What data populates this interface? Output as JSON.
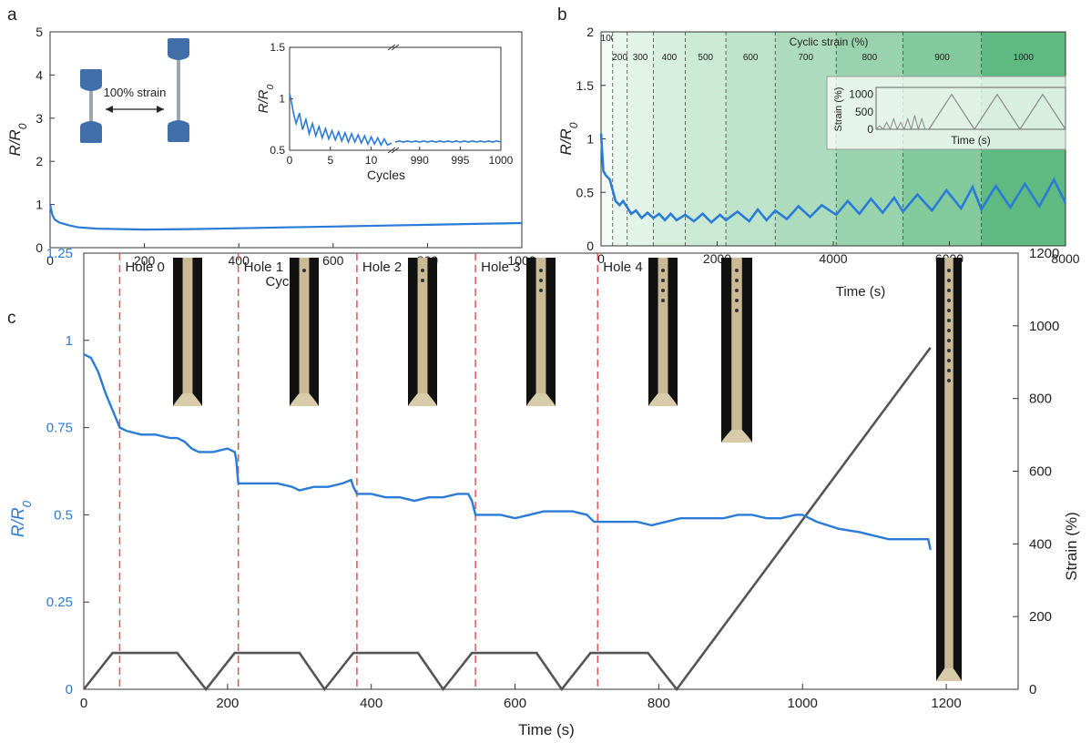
{
  "panels": {
    "a": "a",
    "b": "b",
    "c": "c"
  },
  "colors": {
    "blue": "#2a7bd6",
    "dark": "#555555",
    "red": "#e05555",
    "specimen": "#3f6ea8",
    "wire": "#9aa7b5"
  },
  "chart_data": [
    {
      "id": "a",
      "type": "line",
      "xlabel": "Cycles",
      "ylabel": "R/R0",
      "xlim": [
        0,
        1000
      ],
      "ylim": [
        0,
        5
      ],
      "xticks": [
        0,
        200,
        400,
        600,
        800,
        1000
      ],
      "yticks": [
        0,
        1,
        2,
        3,
        4,
        5
      ],
      "series": [
        {
          "x": [
            0,
            5,
            10,
            20,
            40,
            60,
            100,
            150,
            200,
            300,
            400,
            500,
            600,
            700,
            800,
            900,
            1000
          ],
          "y": [
            1.0,
            0.75,
            0.65,
            0.58,
            0.52,
            0.47,
            0.44,
            0.43,
            0.42,
            0.43,
            0.45,
            0.47,
            0.49,
            0.51,
            0.53,
            0.55,
            0.57
          ]
        }
      ],
      "annotation": "100% strain",
      "inset": {
        "xlabel": "Cycles",
        "ylabel": "R/R0",
        "ylim": [
          0.5,
          1.5
        ],
        "yticks": [
          0.5,
          1,
          1.5
        ],
        "left_xlim": [
          0,
          12.5
        ],
        "left_xticks": [
          0,
          5,
          10
        ],
        "right_xlim": [
          987,
          1000
        ],
        "right_xticks": [
          990,
          995,
          1000
        ],
        "left_series": {
          "x": [
            0,
            0.2,
            0.5,
            0.8,
            1.2,
            1.6,
            2.0,
            2.4,
            2.8,
            3.2,
            3.6,
            4.0,
            4.4,
            4.8,
            5.2,
            5.6,
            6.0,
            6.4,
            6.8,
            7.2,
            7.6,
            8.0,
            8.4,
            8.8,
            9.2,
            9.6,
            10.0,
            10.4,
            10.8,
            11.2,
            11.6,
            12.0,
            12.5
          ],
          "y": [
            1.05,
            0.98,
            0.85,
            0.76,
            0.86,
            0.7,
            0.8,
            0.66,
            0.76,
            0.64,
            0.73,
            0.62,
            0.71,
            0.61,
            0.69,
            0.6,
            0.68,
            0.59,
            0.67,
            0.58,
            0.66,
            0.58,
            0.65,
            0.57,
            0.64,
            0.56,
            0.63,
            0.56,
            0.62,
            0.55,
            0.61,
            0.55,
            0.57
          ]
        },
        "right_series": {
          "x": [
            987,
            987.5,
            988,
            988.5,
            989,
            989.5,
            990,
            990.5,
            991,
            991.5,
            992,
            992.5,
            993,
            993.5,
            994,
            994.5,
            995,
            995.5,
            996,
            996.5,
            997,
            997.5,
            998,
            998.5,
            999,
            999.5,
            1000
          ],
          "y": [
            0.58,
            0.59,
            0.58,
            0.59,
            0.58,
            0.59,
            0.58,
            0.59,
            0.58,
            0.59,
            0.58,
            0.59,
            0.58,
            0.59,
            0.58,
            0.59,
            0.58,
            0.59,
            0.58,
            0.59,
            0.58,
            0.59,
            0.58,
            0.59,
            0.58,
            0.59,
            0.58
          ]
        }
      }
    },
    {
      "id": "b",
      "type": "line",
      "xlabel": "Time (s)",
      "ylabel": "R/R0",
      "xlim": [
        0,
        8000
      ],
      "ylim": [
        0,
        2
      ],
      "xticks": [
        0,
        2000,
        4000,
        6000,
        8000
      ],
      "yticks": [
        0,
        0.5,
        1,
        1.5,
        2
      ],
      "region_title": "Cyclic strain (%)",
      "regions": [
        {
          "label": "100",
          "x0": 0,
          "x1": 200
        },
        {
          "label": "200",
          "x0": 200,
          "x1": 450
        },
        {
          "label": "300",
          "x0": 450,
          "x1": 900
        },
        {
          "label": "400",
          "x0": 900,
          "x1": 1450
        },
        {
          "label": "500",
          "x0": 1450,
          "x1": 2150
        },
        {
          "label": "600",
          "x0": 2150,
          "x1": 3000
        },
        {
          "label": "700",
          "x0": 3000,
          "x1": 4050
        },
        {
          "label": "800",
          "x0": 4050,
          "x1": 5200
        },
        {
          "label": "900",
          "x0": 5200,
          "x1": 6550
        },
        {
          "label": "1000",
          "x0": 6550,
          "x1": 8000
        }
      ],
      "series": [
        {
          "x": [
            0,
            40,
            80,
            150,
            250,
            320,
            380,
            450,
            520,
            600,
            700,
            800,
            900,
            1000,
            1100,
            1200,
            1300,
            1450,
            1600,
            1750,
            1900,
            2050,
            2150,
            2350,
            2550,
            2700,
            2850,
            3000,
            3200,
            3400,
            3600,
            3800,
            4050,
            4250,
            4450,
            4650,
            4850,
            5050,
            5200,
            5450,
            5700,
            5950,
            6200,
            6400,
            6550,
            6800,
            7050,
            7300,
            7550,
            7800,
            8000
          ],
          "y": [
            1.05,
            0.7,
            0.66,
            0.62,
            0.42,
            0.38,
            0.42,
            0.36,
            0.3,
            0.33,
            0.26,
            0.31,
            0.26,
            0.3,
            0.24,
            0.3,
            0.24,
            0.29,
            0.23,
            0.3,
            0.22,
            0.29,
            0.24,
            0.32,
            0.23,
            0.34,
            0.24,
            0.33,
            0.25,
            0.37,
            0.27,
            0.38,
            0.29,
            0.42,
            0.3,
            0.44,
            0.31,
            0.45,
            0.32,
            0.48,
            0.33,
            0.52,
            0.35,
            0.55,
            0.34,
            0.56,
            0.36,
            0.58,
            0.37,
            0.62,
            0.4
          ]
        }
      ],
      "inset": {
        "xlabel": "Time (s)",
        "ylabel": "Strain (%)",
        "yticks": [
          0,
          500,
          1000
        ],
        "ylim": [
          0,
          1200
        ],
        "xlim": [
          0,
          10
        ],
        "left_series": {
          "x": [
            0,
            0.3,
            0.6,
            0.9,
            1.2,
            1.5,
            1.8,
            2.1,
            2.4,
            2.7,
            3.0,
            3.3,
            3.6,
            3.9,
            4.2
          ],
          "y": [
            0,
            100,
            0,
            200,
            0,
            300,
            0,
            200,
            0,
            300,
            0,
            400,
            0,
            300,
            0
          ]
        },
        "right_series": {
          "x": [
            4.6,
            5.5,
            6.4,
            7.3,
            8.2,
            9.1,
            10.0
          ],
          "y": [
            0,
            1000,
            0,
            1000,
            0,
            1000,
            0
          ]
        }
      }
    },
    {
      "id": "c",
      "type": "line",
      "xlabel": "Time (s)",
      "ylabel": "R/R0",
      "ylabel_right": "Strain (%)",
      "xlim": [
        0,
        1300
      ],
      "ylim": [
        0,
        1.25
      ],
      "ylim_right": [
        0,
        1200
      ],
      "xticks": [
        0,
        200,
        400,
        600,
        800,
        1000,
        1200
      ],
      "yticks": [
        0,
        0.25,
        0.5,
        0.75,
        1,
        1.25
      ],
      "yticks_right": [
        0,
        200,
        400,
        600,
        800,
        1000,
        1200
      ],
      "holes": [
        {
          "label": "Hole 0",
          "x": 50
        },
        {
          "label": "Hole 1",
          "x": 215
        },
        {
          "label": "Hole 2",
          "x": 380
        },
        {
          "label": "Hole 3",
          "x": 545
        },
        {
          "label": "Hole 4",
          "x": 715
        }
      ],
      "series": [
        {
          "name": "R/R0",
          "axis": "left",
          "x": [
            0,
            10,
            20,
            30,
            40,
            50,
            60,
            80,
            100,
            120,
            130,
            140,
            150,
            160,
            180,
            200,
            210,
            212,
            215,
            230,
            250,
            270,
            290,
            300,
            320,
            340,
            360,
            372,
            375,
            380,
            400,
            420,
            440,
            460,
            480,
            500,
            520,
            535,
            540,
            545,
            560,
            580,
            600,
            620,
            640,
            660,
            680,
            700,
            705,
            710,
            730,
            750,
            770,
            790,
            810,
            830,
            850,
            870,
            890,
            910,
            930,
            950,
            970,
            990,
            1000,
            1020,
            1050,
            1080,
            1100,
            1120,
            1140,
            1160,
            1175,
            1178
          ],
          "y": [
            0.96,
            0.95,
            0.91,
            0.85,
            0.8,
            0.75,
            0.74,
            0.73,
            0.73,
            0.72,
            0.72,
            0.71,
            0.69,
            0.68,
            0.68,
            0.69,
            0.68,
            0.66,
            0.59,
            0.59,
            0.59,
            0.59,
            0.58,
            0.57,
            0.58,
            0.58,
            0.59,
            0.6,
            0.58,
            0.56,
            0.56,
            0.55,
            0.55,
            0.54,
            0.55,
            0.55,
            0.56,
            0.56,
            0.54,
            0.5,
            0.5,
            0.5,
            0.49,
            0.5,
            0.51,
            0.51,
            0.51,
            0.5,
            0.49,
            0.48,
            0.48,
            0.48,
            0.48,
            0.47,
            0.48,
            0.49,
            0.49,
            0.49,
            0.49,
            0.5,
            0.5,
            0.49,
            0.49,
            0.5,
            0.5,
            0.48,
            0.46,
            0.45,
            0.44,
            0.43,
            0.43,
            0.43,
            0.43,
            0.4
          ]
        },
        {
          "name": "Strain (%)",
          "axis": "right",
          "x": [
            0,
            40,
            130,
            170,
            210,
            260,
            300,
            335,
            375,
            420,
            465,
            500,
            540,
            585,
            630,
            665,
            705,
            750,
            785,
            825,
            1178
          ],
          "y": [
            0,
            100,
            100,
            0,
            100,
            100,
            100,
            0,
            100,
            100,
            100,
            0,
            100,
            100,
            100,
            0,
            100,
            100,
            100,
            0,
            940
          ]
        }
      ]
    }
  ]
}
